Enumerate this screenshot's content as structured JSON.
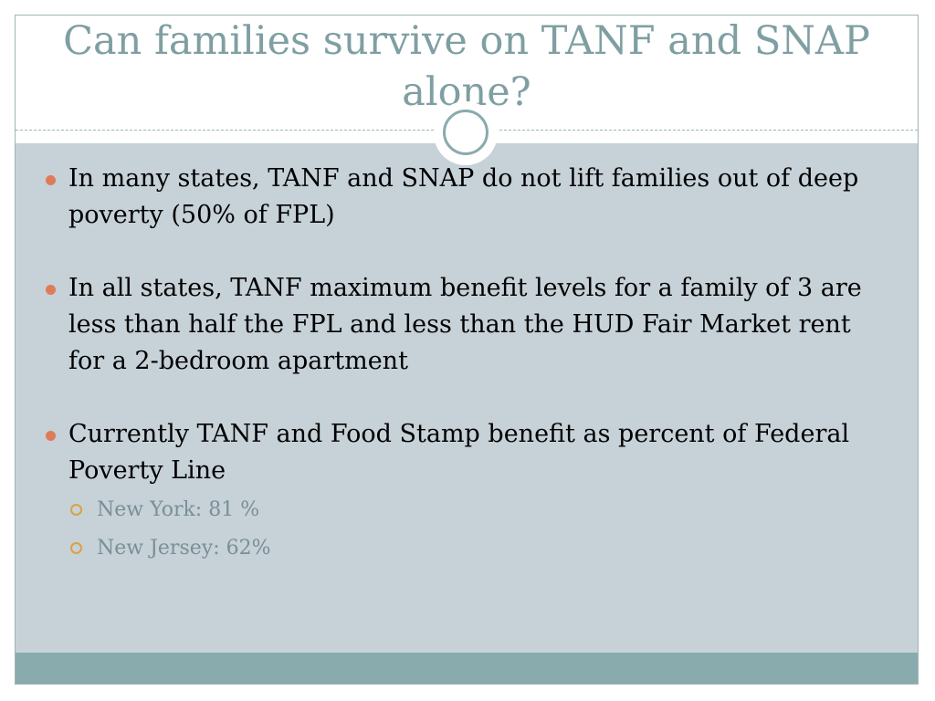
{
  "title": "Can families survive on TANF and SNAP alone?",
  "bullets": [
    {
      "text": "In many states, TANF and SNAP do not lift families out of deep poverty (50% of FPL)"
    },
    {
      "text": "In all states, TANF maximum benefit levels for a family of 3 are less than half the FPL and less than the HUD Fair Market rent for a 2-bedroom apartment"
    },
    {
      "text": "Currently TANF and Food Stamp benefit as percent of Federal Poverty Line",
      "sub_items": [
        "New York: 81 %",
        "New Jersey: 62%"
      ]
    }
  ],
  "colors": {
    "title": "#7f9fa2",
    "content_background": "#c6d1d8",
    "bottom_bar": "#8aabae",
    "bullet_dot": "#e07b5a",
    "sub_bullet_ring": "#d9a343",
    "sub_text": "#7a8f96"
  }
}
